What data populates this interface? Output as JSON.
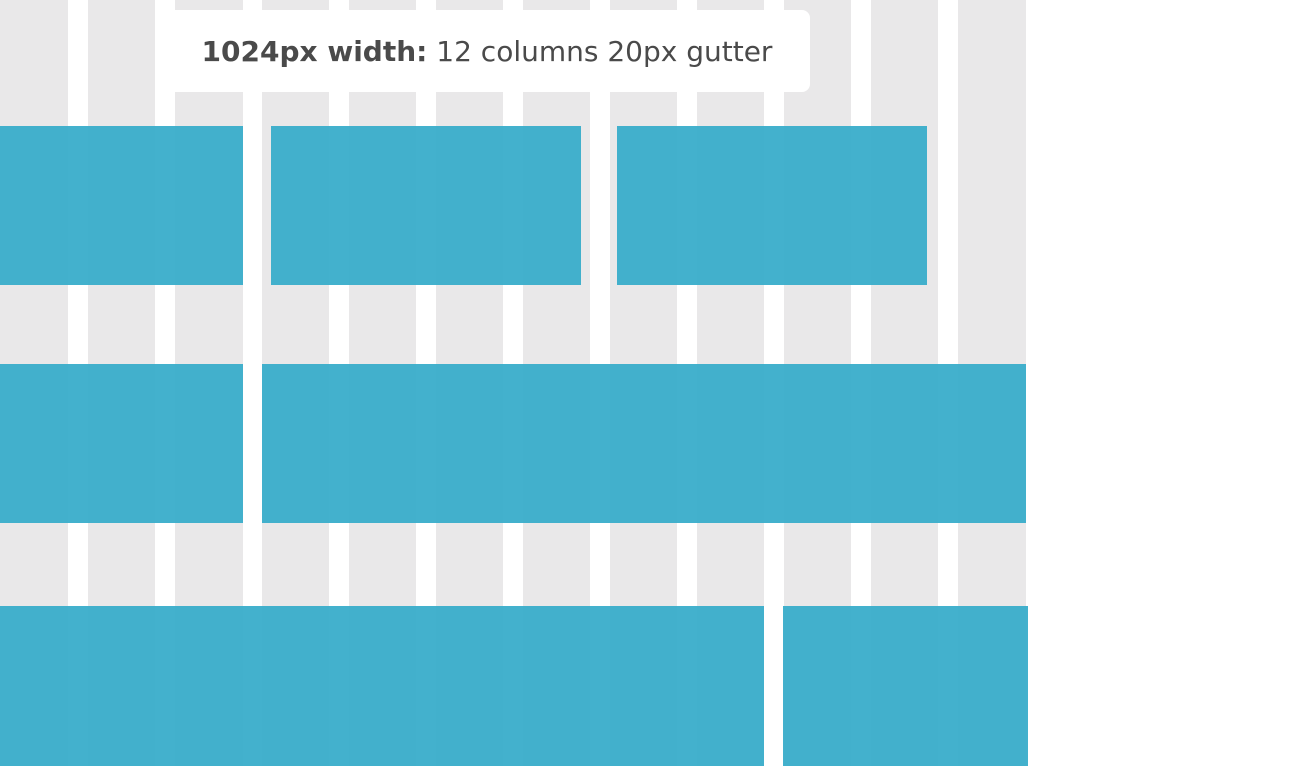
{
  "label": {
    "bold": "1024px width:",
    "text": "12 columns 20px gutter"
  }
}
